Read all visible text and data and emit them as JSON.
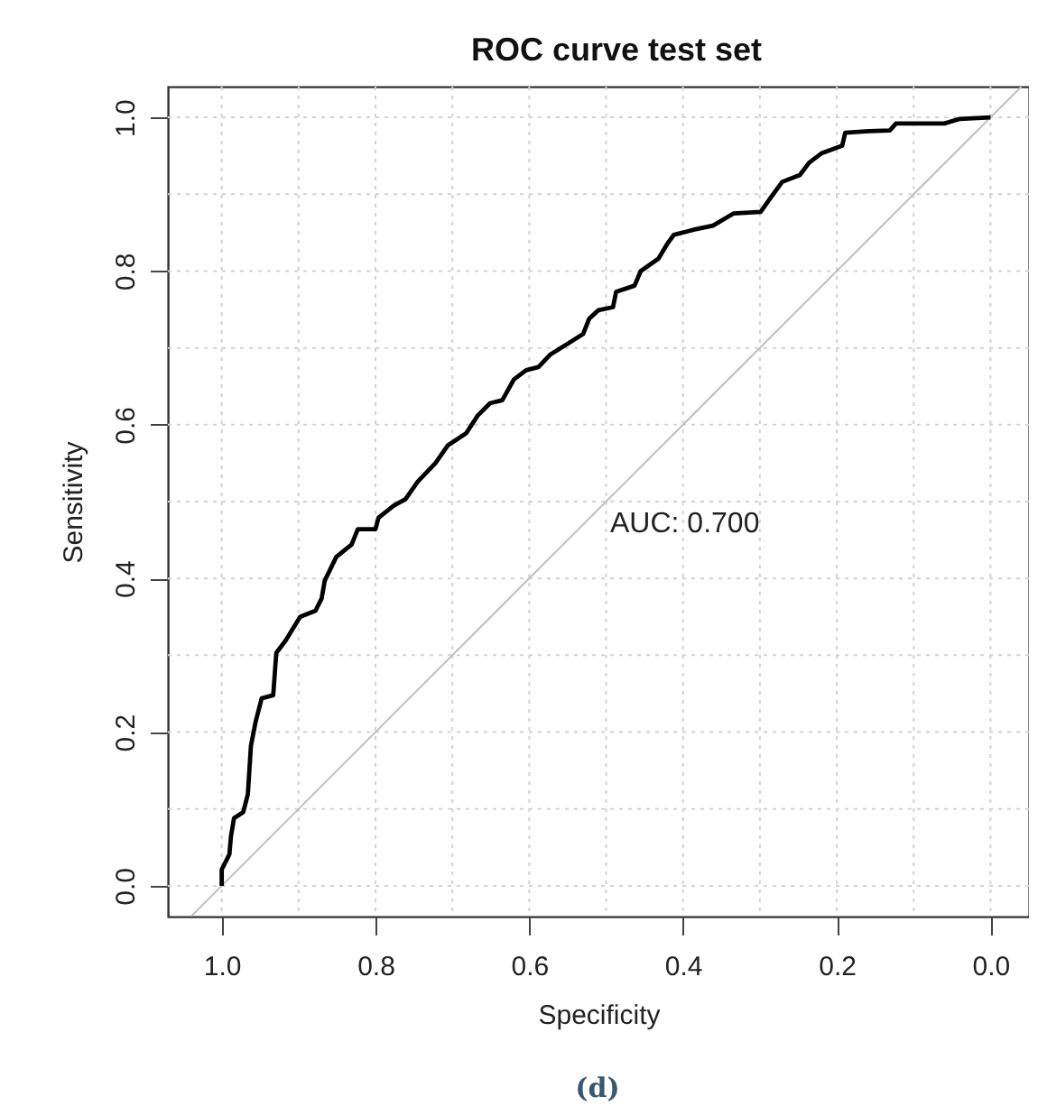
{
  "chart_data": {
    "type": "line",
    "title": "ROC curve test set",
    "xlabel": "Specificity",
    "ylabel": "Sensitivity",
    "xlim": [
      1.07,
      -0.05
    ],
    "ylim": [
      -0.04,
      1.04
    ],
    "xticks": [
      {
        "value": 1,
        "label": "1.0"
      },
      {
        "value": 0.8,
        "label": "0.8"
      },
      {
        "value": 0.6,
        "label": "0.6"
      },
      {
        "value": 0.4,
        "label": "0.4"
      },
      {
        "value": 0.2,
        "label": "0.2"
      },
      {
        "value": 0,
        "label": "0.0"
      }
    ],
    "yticks": [
      {
        "value": 0,
        "label": "0.0"
      },
      {
        "value": 0.2,
        "label": "0.2"
      },
      {
        "value": 0.4,
        "label": "0.4"
      },
      {
        "value": 0.6,
        "label": "0.6"
      },
      {
        "value": 0.8,
        "label": "0.8"
      },
      {
        "value": 1,
        "label": "1.0"
      }
    ],
    "grid": true,
    "marker": "none",
    "line_style": "solid",
    "annotations": [
      "AUC: 0.700",
      "(d)"
    ],
    "series": [
      {
        "color": "#000000",
        "x": [
          1.0,
          1.0,
          0.99,
          0.988,
          0.984,
          0.972,
          0.966,
          0.962,
          0.956,
          0.948,
          0.933,
          0.929,
          0.917,
          0.898,
          0.878,
          0.87,
          0.866,
          0.851,
          0.831,
          0.823,
          0.8,
          0.796,
          0.776,
          0.761,
          0.745,
          0.722,
          0.706,
          0.682,
          0.667,
          0.651,
          0.635,
          0.62,
          0.604,
          0.588,
          0.573,
          0.549,
          0.53,
          0.522,
          0.51,
          0.491,
          0.487,
          0.463,
          0.455,
          0.432,
          0.42,
          0.412,
          0.385,
          0.361,
          0.334,
          0.299,
          0.287,
          0.271,
          0.248,
          0.236,
          0.22,
          0.193,
          0.189,
          0.158,
          0.131,
          0.123,
          0.06,
          0.04,
          0.0
        ],
        "values": [
          0.0,
          0.021,
          0.041,
          0.064,
          0.088,
          0.096,
          0.119,
          0.182,
          0.213,
          0.244,
          0.248,
          0.303,
          0.319,
          0.35,
          0.358,
          0.374,
          0.397,
          0.428,
          0.444,
          0.464,
          0.464,
          0.479,
          0.495,
          0.503,
          0.526,
          0.55,
          0.573,
          0.589,
          0.612,
          0.628,
          0.632,
          0.659,
          0.671,
          0.675,
          0.691,
          0.706,
          0.718,
          0.738,
          0.749,
          0.753,
          0.773,
          0.781,
          0.8,
          0.816,
          0.836,
          0.847,
          0.854,
          0.859,
          0.875,
          0.877,
          0.894,
          0.916,
          0.925,
          0.941,
          0.953,
          0.963,
          0.98,
          0.982,
          0.983,
          0.992,
          0.992,
          0.998,
          1.0
        ]
      },
      {
        "type": "line",
        "color": "#c0c0c0",
        "x": [
          1.04,
          -0.04
        ],
        "values": [
          -0.04,
          1.04
        ]
      }
    ]
  }
}
